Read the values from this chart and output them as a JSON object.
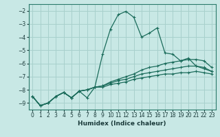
{
  "xlabel": "Humidex (Indice chaleur)",
  "bg_color": "#c8e8e5",
  "grid_color": "#a8d0cc",
  "line_color": "#1a6b5a",
  "xlim": [
    -0.5,
    23.5
  ],
  "ylim": [
    -9.5,
    -1.5
  ],
  "yticks": [
    -9,
    -8,
    -7,
    -6,
    -5,
    -4,
    -3,
    -2
  ],
  "xticks": [
    0,
    1,
    2,
    3,
    4,
    5,
    6,
    7,
    8,
    9,
    10,
    11,
    12,
    13,
    14,
    15,
    16,
    17,
    18,
    19,
    20,
    21,
    22,
    23
  ],
  "lines": [
    {
      "x": [
        0,
        1,
        2,
        3,
        4,
        5,
        6,
        7,
        8,
        9,
        10,
        11,
        12,
        13,
        14,
        15,
        16,
        17,
        18,
        19,
        20,
        21,
        22,
        23
      ],
      "y": [
        -8.5,
        -9.2,
        -9.0,
        -8.5,
        -8.2,
        -8.6,
        -8.1,
        -8.6,
        -7.8,
        -5.3,
        -3.4,
        -2.3,
        -2.05,
        -2.5,
        -4.0,
        -3.7,
        -3.3,
        -5.2,
        -5.3,
        -5.8,
        -5.6,
        -6.2,
        -6.4,
        -6.6
      ]
    },
    {
      "x": [
        0,
        1,
        2,
        3,
        4,
        5,
        6,
        7,
        8,
        9,
        10,
        11,
        12,
        13,
        14,
        15,
        16,
        17,
        18,
        19,
        20,
        21,
        22,
        23
      ],
      "y": [
        -8.5,
        -9.2,
        -9.0,
        -8.5,
        -8.2,
        -8.6,
        -8.1,
        -8.0,
        -7.8,
        -7.7,
        -7.4,
        -7.2,
        -7.0,
        -6.8,
        -6.5,
        -6.3,
        -6.2,
        -6.0,
        -5.9,
        -5.8,
        -5.7,
        -5.7,
        -5.8,
        -6.3
      ]
    },
    {
      "x": [
        0,
        1,
        2,
        3,
        4,
        5,
        6,
        7,
        8,
        9,
        10,
        11,
        12,
        13,
        14,
        15,
        16,
        17,
        18,
        19,
        20,
        21,
        22,
        23
      ],
      "y": [
        -8.5,
        -9.2,
        -9.0,
        -8.5,
        -8.2,
        -8.6,
        -8.1,
        -8.0,
        -7.8,
        -7.7,
        -7.5,
        -7.3,
        -7.2,
        -7.0,
        -6.8,
        -6.7,
        -6.6,
        -6.5,
        -6.4,
        -6.3,
        -6.2,
        -6.2,
        -6.3,
        -6.6
      ]
    },
    {
      "x": [
        0,
        1,
        2,
        3,
        4,
        5,
        6,
        7,
        8,
        9,
        10,
        11,
        12,
        13,
        14,
        15,
        16,
        17,
        18,
        19,
        20,
        21,
        22,
        23
      ],
      "y": [
        -8.5,
        -9.2,
        -9.0,
        -8.5,
        -8.2,
        -8.6,
        -8.1,
        -8.0,
        -7.8,
        -7.8,
        -7.6,
        -7.5,
        -7.4,
        -7.2,
        -7.1,
        -7.0,
        -6.9,
        -6.8,
        -6.8,
        -6.7,
        -6.7,
        -6.6,
        -6.7,
        -6.8
      ]
    }
  ]
}
